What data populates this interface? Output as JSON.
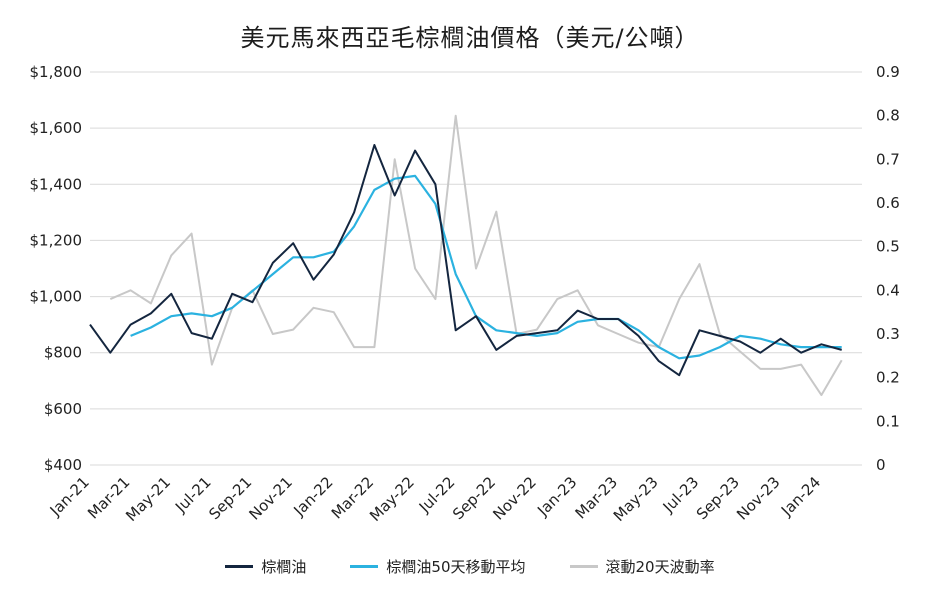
{
  "title": "美元馬來西亞毛棕櫚油價格（美元/公噸）",
  "chart_data": {
    "type": "line",
    "title": "美元馬來西亞毛棕櫚油價格（美元/公噸）",
    "x_tick_labels": [
      "Jan-21",
      "Mar-21",
      "May-21",
      "Jul-21",
      "Sep-21",
      "Nov-21",
      "Jan-22",
      "Mar-22",
      "May-22",
      "Jul-22",
      "Sep-22",
      "Nov-22",
      "Jan-23",
      "Mar-23",
      "May-23",
      "Jul-23",
      "Sep-23",
      "Nov-23",
      "Jan-24"
    ],
    "y_left": {
      "ylim": [
        400,
        1800
      ],
      "ticks": [
        400,
        600,
        800,
        1000,
        1200,
        1400,
        1600,
        1800
      ],
      "tick_labels": [
        "$400",
        "$600",
        "$800",
        "$1,000",
        "$1,200",
        "$1,400",
        "$1,600",
        "$1,800"
      ]
    },
    "y_right": {
      "ylim": [
        0,
        0.9
      ],
      "ticks": [
        0,
        0.1,
        0.2,
        0.3,
        0.4,
        0.5,
        0.6,
        0.7,
        0.8,
        0.9
      ],
      "tick_labels": [
        "0",
        "0.1",
        "0.2",
        "0.3",
        "0.4",
        "0.5",
        "0.6",
        "0.7",
        "0.8",
        "0.9"
      ]
    },
    "grid": "horizontal",
    "legend_position": "bottom",
    "series": [
      {
        "name": "棕櫚油",
        "axis": "left",
        "color": "#14263f",
        "x": [
          "2021-01",
          "2021-02",
          "2021-03",
          "2021-04",
          "2021-05",
          "2021-06",
          "2021-07",
          "2021-08",
          "2021-09",
          "2021-10",
          "2021-11",
          "2021-12",
          "2022-01",
          "2022-02",
          "2022-03",
          "2022-04",
          "2022-05",
          "2022-06",
          "2022-07",
          "2022-08",
          "2022-09",
          "2022-10",
          "2022-11",
          "2022-12",
          "2023-01",
          "2023-02",
          "2023-03",
          "2023-04",
          "2023-05",
          "2023-06",
          "2023-07",
          "2023-08",
          "2023-09",
          "2023-10",
          "2023-11",
          "2023-12",
          "2024-01",
          "2024-02"
        ],
        "y": [
          900,
          800,
          900,
          940,
          1010,
          870,
          850,
          1010,
          980,
          1120,
          1190,
          1060,
          1150,
          1300,
          1540,
          1360,
          1520,
          1400,
          880,
          930,
          810,
          860,
          870,
          880,
          950,
          920,
          920,
          860,
          770,
          720,
          880,
          860,
          840,
          800,
          850,
          800,
          830,
          810
        ]
      },
      {
        "name": "棕櫚油50天移動平均",
        "axis": "left",
        "color": "#2bb2e0",
        "x": [
          "2021-03",
          "2021-04",
          "2021-05",
          "2021-06",
          "2021-07",
          "2021-08",
          "2021-09",
          "2021-10",
          "2021-11",
          "2021-12",
          "2022-01",
          "2022-02",
          "2022-03",
          "2022-04",
          "2022-05",
          "2022-06",
          "2022-07",
          "2022-08",
          "2022-09",
          "2022-10",
          "2022-11",
          "2022-12",
          "2023-01",
          "2023-02",
          "2023-03",
          "2023-04",
          "2023-05",
          "2023-06",
          "2023-07",
          "2023-08",
          "2023-09",
          "2023-10",
          "2023-11",
          "2023-12",
          "2024-01",
          "2024-02"
        ],
        "y": [
          860,
          890,
          930,
          940,
          930,
          960,
          1020,
          1080,
          1140,
          1140,
          1160,
          1250,
          1380,
          1420,
          1430,
          1330,
          1080,
          930,
          880,
          870,
          860,
          870,
          910,
          920,
          920,
          880,
          820,
          780,
          790,
          820,
          860,
          850,
          830,
          820,
          820,
          820
        ]
      },
      {
        "name": "滾動20天波動率",
        "axis": "right",
        "color": "#c8c8c8",
        "x": [
          "2021-02",
          "2021-03",
          "2021-04",
          "2021-05",
          "2021-06",
          "2021-07",
          "2021-08",
          "2021-09",
          "2021-10",
          "2021-11",
          "2021-12",
          "2022-01",
          "2022-02",
          "2022-03",
          "2022-04",
          "2022-05",
          "2022-06",
          "2022-07",
          "2022-08",
          "2022-09",
          "2022-10",
          "2022-11",
          "2022-12",
          "2023-01",
          "2023-02",
          "2023-03",
          "2023-04",
          "2023-05",
          "2023-06",
          "2023-07",
          "2023-08",
          "2023-09",
          "2023-10",
          "2023-11",
          "2023-12",
          "2024-01",
          "2024-02"
        ],
        "y": [
          0.38,
          0.4,
          0.37,
          0.48,
          0.53,
          0.23,
          0.36,
          0.4,
          0.3,
          0.31,
          0.36,
          0.35,
          0.27,
          0.27,
          0.7,
          0.45,
          0.38,
          0.8,
          0.45,
          0.58,
          0.3,
          0.31,
          0.38,
          0.4,
          0.32,
          0.3,
          0.28,
          0.27,
          0.38,
          0.46,
          0.3,
          0.26,
          0.22,
          0.22,
          0.23,
          0.16,
          0.24
        ]
      }
    ]
  },
  "legend": {
    "items": [
      {
        "label": "棕櫚油",
        "color": "#14263f"
      },
      {
        "label": "棕櫚油50天移動平均",
        "color": "#2bb2e0"
      },
      {
        "label": "滾動20天波動率",
        "color": "#c8c8c8"
      }
    ]
  }
}
